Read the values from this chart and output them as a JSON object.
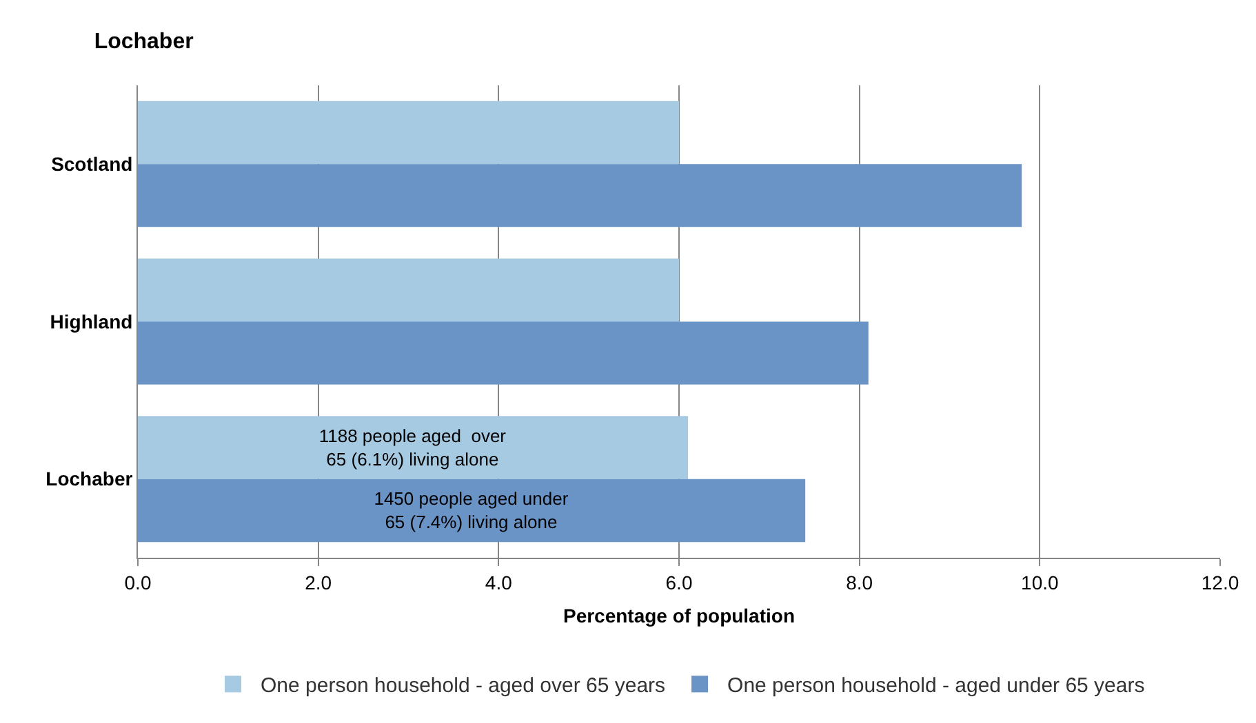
{
  "chart_data": {
    "type": "bar",
    "orientation": "horizontal",
    "title": "Lochaber",
    "xlabel": "Percentage of population",
    "categories": [
      "Scotland",
      "Highland",
      "Lochaber"
    ],
    "series": [
      {
        "name": "One person household - aged over 65 years",
        "color": "#a6cae2",
        "values": [
          6.0,
          6.0,
          6.1
        ],
        "value_labels": [
          null,
          null,
          "1188 people aged  over\n65 (6.1%) living alone"
        ]
      },
      {
        "name": "One person household - aged under 65 years",
        "color": "#6a93c6",
        "values": [
          9.8,
          8.1,
          7.4
        ],
        "value_labels": [
          null,
          null,
          "1450 people aged under\n65 (7.4%) living alone"
        ]
      }
    ],
    "xlim": [
      0,
      12
    ],
    "xticks": [
      {
        "value": 0,
        "label": "0.0"
      },
      {
        "value": 2,
        "label": "2.0"
      },
      {
        "value": 4,
        "label": "4.0"
      },
      {
        "value": 6,
        "label": "6.0"
      },
      {
        "value": 8,
        "label": "8.0"
      },
      {
        "value": 10,
        "label": "10.0"
      },
      {
        "value": 12,
        "label": "12.0"
      }
    ],
    "grid": "x",
    "legend": "bottom"
  }
}
